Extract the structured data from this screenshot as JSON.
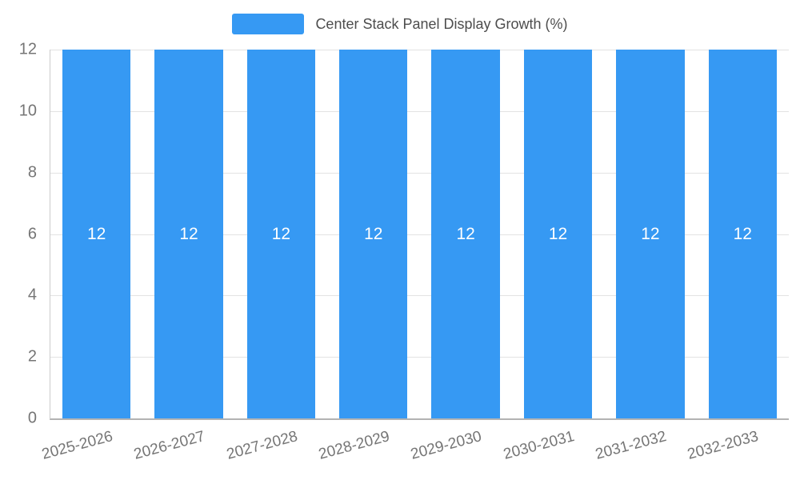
{
  "chart_data": {
    "type": "bar",
    "title": "Center Stack Panel Display Growth (%)",
    "categories": [
      "2025-2026",
      "2026-2027",
      "2027-2028",
      "2028-2029",
      "2029-2030",
      "2030-2031",
      "2031-2032",
      "2032-2033"
    ],
    "values": [
      12,
      12,
      12,
      12,
      12,
      12,
      12,
      12
    ],
    "bar_labels": [
      "12",
      "12",
      "12",
      "12",
      "12",
      "12",
      "12",
      "12"
    ],
    "xlabel": "",
    "ylabel": "",
    "ylim": [
      0,
      12
    ],
    "y_ticks": [
      0,
      2,
      4,
      6,
      8,
      10,
      12
    ],
    "grid": true,
    "legend_position": "top",
    "bar_color": "#3699f3",
    "value_label_color": "#ffffff",
    "axis_text_color": "#757575",
    "grid_color": "#e3e3e3",
    "axis_line_color": "#b3b3b3",
    "title_color": "#4d4d4d"
  }
}
